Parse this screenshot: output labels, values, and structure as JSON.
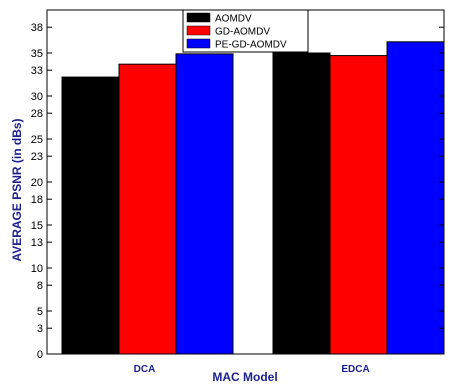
{
  "chart_data": {
    "type": "bar",
    "title": "",
    "xlabel": "MAC Model",
    "ylabel": "AVERAGE PSNR (in dBs)",
    "categories": [
      "DCA",
      "EDCA"
    ],
    "series": [
      {
        "name": "AOMDV",
        "color": "#000000",
        "values": [
          32.2,
          35.0
        ]
      },
      {
        "name": "GD-AOMDV",
        "color": "#ff0000",
        "values": [
          33.7,
          34.7
        ]
      },
      {
        "name": "PE-GD-AOMDV",
        "color": "#0000ff",
        "values": [
          34.9,
          36.3
        ]
      }
    ],
    "ylim": [
      0,
      40
    ],
    "yticks": [
      0,
      3,
      5,
      8,
      10,
      13,
      15,
      18,
      20,
      23,
      25,
      28,
      30,
      33,
      35,
      38
    ],
    "grid": false,
    "legend_position": "top-center"
  }
}
